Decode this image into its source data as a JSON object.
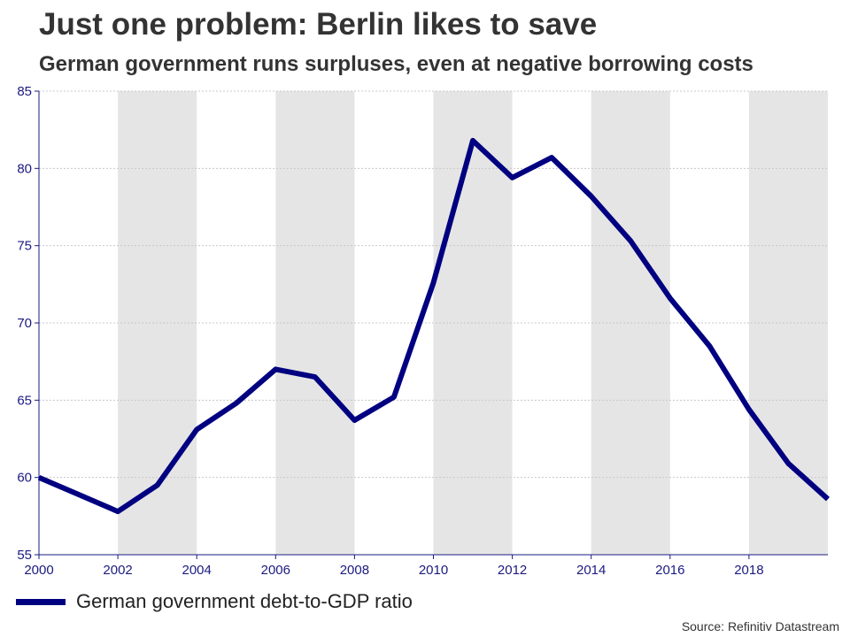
{
  "colors": {
    "line": "#000080",
    "band": "#e5e5e5",
    "grid": "#c8c8c8",
    "axis": "#1a1a80"
  },
  "chart_data": {
    "type": "line",
    "title": "Just one problem: Berlin likes to save",
    "subtitle": "German government runs surpluses, even at negative borrowing costs",
    "xlabel": "",
    "ylabel": "",
    "xlim": [
      2000,
      2020
    ],
    "ylim": [
      55,
      85
    ],
    "x_ticks": [
      2000,
      2002,
      2004,
      2006,
      2008,
      2010,
      2012,
      2014,
      2016,
      2018
    ],
    "x_tick_labels": [
      "2000",
      "2002",
      "2004",
      "2006",
      "2008",
      "2010",
      "2012",
      "2014",
      "2016",
      "2018"
    ],
    "y_ticks": [
      55,
      60,
      65,
      70,
      75,
      80,
      85
    ],
    "y_tick_labels": [
      "55",
      "60",
      "65",
      "70",
      "75",
      "80",
      "85"
    ],
    "shaded_intervals": [
      [
        2002,
        2004
      ],
      [
        2006,
        2008
      ],
      [
        2010,
        2012
      ],
      [
        2014,
        2016
      ],
      [
        2018,
        2020
      ]
    ],
    "grid": true,
    "legend_position": "bottom-left",
    "series": [
      {
        "name": "German government debt-to-GDP ratio",
        "x": [
          2000,
          2001,
          2002,
          2003,
          2004,
          2005,
          2006,
          2007,
          2008,
          2009,
          2010,
          2011,
          2012,
          2013,
          2014,
          2015,
          2016,
          2017,
          2018,
          2019,
          2020
        ],
        "values": [
          60.0,
          58.9,
          57.8,
          59.5,
          63.1,
          64.8,
          67.0,
          66.5,
          63.7,
          65.2,
          72.6,
          81.8,
          79.4,
          80.7,
          78.2,
          75.3,
          71.6,
          68.5,
          64.4,
          60.9,
          58.6
        ]
      }
    ],
    "source": "Source: Refinitiv Datastream"
  }
}
